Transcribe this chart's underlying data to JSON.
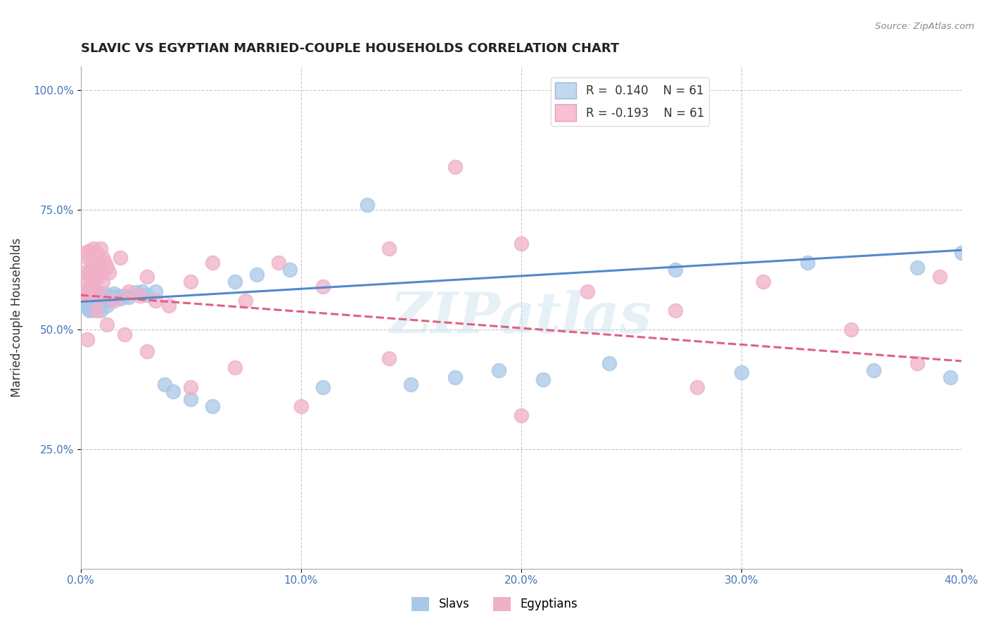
{
  "title": "SLAVIC VS EGYPTIAN MARRIED-COUPLE HOUSEHOLDS CORRELATION CHART",
  "source_text": "Source: ZipAtlas.com",
  "ylabel": "Married-couple Households",
  "xlabel_vals": [
    0.0,
    0.1,
    0.2,
    0.3,
    0.4
  ],
  "ylabel_vals": [
    0.25,
    0.5,
    0.75,
    1.0
  ],
  "legend_label_slavs": "Slavs",
  "legend_label_egyptians": "Egyptians",
  "slavs_color": "#a8c8e8",
  "egyptians_color": "#f0b0c8",
  "trend_slavs_color": "#5588cc",
  "trend_egyptians_color": "#e06080",
  "watermark": "ZIPatlas",
  "slavs_x": [
    0.001,
    0.002,
    0.003,
    0.003,
    0.004,
    0.004,
    0.004,
    0.005,
    0.005,
    0.005,
    0.005,
    0.006,
    0.006,
    0.006,
    0.007,
    0.007,
    0.007,
    0.008,
    0.008,
    0.008,
    0.009,
    0.009,
    0.01,
    0.01,
    0.011,
    0.011,
    0.012,
    0.012,
    0.013,
    0.014,
    0.015,
    0.016,
    0.017,
    0.018,
    0.02,
    0.022,
    0.025,
    0.028,
    0.03,
    0.034,
    0.038,
    0.042,
    0.05,
    0.06,
    0.07,
    0.08,
    0.095,
    0.11,
    0.13,
    0.15,
    0.17,
    0.19,
    0.21,
    0.24,
    0.27,
    0.3,
    0.33,
    0.36,
    0.38,
    0.395,
    0.4
  ],
  "slavs_y": [
    0.555,
    0.56,
    0.545,
    0.57,
    0.54,
    0.558,
    0.572,
    0.55,
    0.565,
    0.542,
    0.58,
    0.555,
    0.567,
    0.575,
    0.56,
    0.548,
    0.57,
    0.555,
    0.562,
    0.578,
    0.54,
    0.57,
    0.558,
    0.565,
    0.575,
    0.56,
    0.55,
    0.568,
    0.57,
    0.56,
    0.575,
    0.568,
    0.57,
    0.565,
    0.57,
    0.568,
    0.578,
    0.58,
    0.572,
    0.58,
    0.385,
    0.37,
    0.355,
    0.34,
    0.6,
    0.615,
    0.625,
    0.38,
    0.76,
    0.385,
    0.4,
    0.415,
    0.395,
    0.43,
    0.625,
    0.41,
    0.64,
    0.415,
    0.63,
    0.4,
    0.66
  ],
  "egyptians_x": [
    0.001,
    0.001,
    0.002,
    0.002,
    0.002,
    0.003,
    0.003,
    0.004,
    0.004,
    0.004,
    0.005,
    0.005,
    0.005,
    0.006,
    0.006,
    0.006,
    0.007,
    0.007,
    0.008,
    0.008,
    0.009,
    0.009,
    0.01,
    0.01,
    0.011,
    0.012,
    0.013,
    0.015,
    0.018,
    0.022,
    0.027,
    0.03,
    0.034,
    0.04,
    0.05,
    0.06,
    0.075,
    0.09,
    0.11,
    0.14,
    0.17,
    0.2,
    0.23,
    0.27,
    0.31,
    0.35,
    0.39,
    0.003,
    0.005,
    0.007,
    0.009,
    0.012,
    0.02,
    0.03,
    0.05,
    0.07,
    0.1,
    0.14,
    0.2,
    0.28,
    0.38
  ],
  "egyptians_y": [
    0.62,
    0.57,
    0.66,
    0.58,
    0.61,
    0.65,
    0.575,
    0.665,
    0.59,
    0.62,
    0.64,
    0.61,
    0.58,
    0.67,
    0.63,
    0.6,
    0.66,
    0.62,
    0.61,
    0.64,
    0.67,
    0.625,
    0.65,
    0.6,
    0.64,
    0.63,
    0.62,
    0.56,
    0.65,
    0.58,
    0.57,
    0.61,
    0.56,
    0.55,
    0.6,
    0.64,
    0.56,
    0.64,
    0.59,
    0.67,
    0.84,
    0.68,
    0.58,
    0.54,
    0.6,
    0.5,
    0.61,
    0.48,
    0.59,
    0.54,
    0.57,
    0.51,
    0.49,
    0.455,
    0.38,
    0.42,
    0.34,
    0.44,
    0.32,
    0.38,
    0.43
  ],
  "xlim": [
    0.0,
    0.4
  ],
  "ylim": [
    0.0,
    1.05
  ],
  "bg_color": "#ffffff",
  "grid_color": "#c8c8c8",
  "trend_slavs_intercept": 0.558,
  "trend_slavs_slope": 0.27,
  "trend_egyptians_intercept": 0.572,
  "trend_egyptians_slope": -0.345
}
